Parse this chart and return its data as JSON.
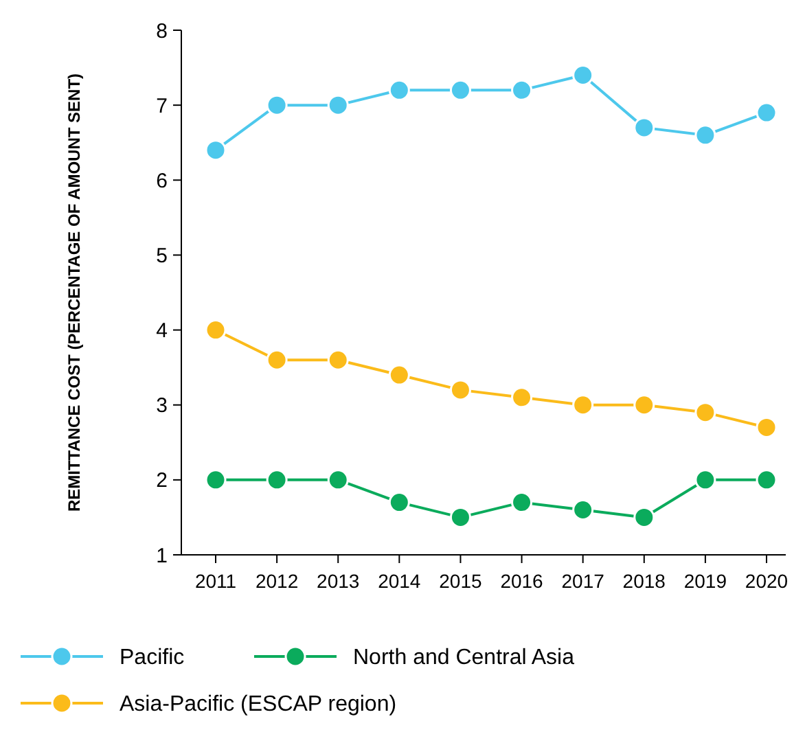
{
  "chart_data": {
    "type": "line",
    "ylabel": "REMITTANCE COST (PERCENTAGE OF AMOUNT SENT)",
    "categories": [
      "2011",
      "2012",
      "2013",
      "2014",
      "2015",
      "2016",
      "2017",
      "2018",
      "2019",
      "2020"
    ],
    "series": [
      {
        "name": "Pacific",
        "color": "#4dc8ec",
        "values": [
          6.4,
          7.0,
          7.0,
          7.2,
          7.2,
          7.2,
          7.4,
          6.7,
          6.6,
          6.9
        ]
      },
      {
        "name": "Asia-Pacific (ESCAP region)",
        "color": "#fbbb1a",
        "values": [
          4.0,
          3.6,
          3.6,
          3.4,
          3.2,
          3.1,
          3.0,
          3.0,
          2.9,
          2.7
        ]
      },
      {
        "name": "North and Central Asia",
        "color": "#0bab5c",
        "values": [
          2.0,
          2.0,
          2.0,
          1.7,
          1.5,
          1.7,
          1.6,
          1.5,
          2.0,
          2.0
        ]
      }
    ],
    "ylim": [
      1,
      8
    ],
    "yticks": [
      1,
      2,
      3,
      4,
      5,
      6,
      7,
      8
    ],
    "grid": false,
    "legend": "bottom",
    "marker": "circle",
    "line_style": "solid"
  }
}
